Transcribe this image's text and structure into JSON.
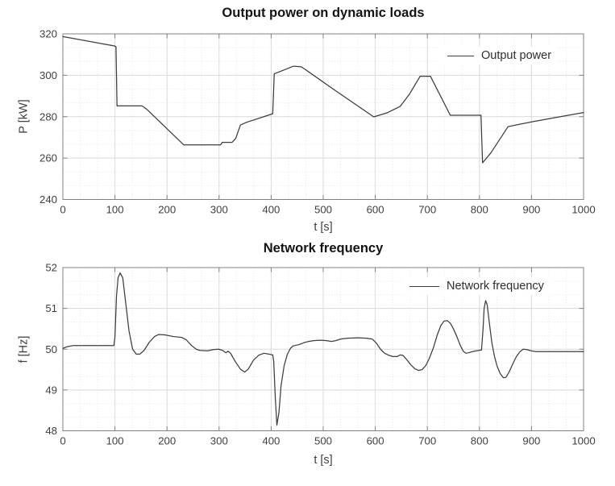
{
  "figure": {
    "background": "#ffffff",
    "axis_color": "#808080",
    "grid_major_color": "#d9d9d9",
    "grid_minor_color": "#e6e6e6",
    "line_color": "#3d3d3d",
    "text_color": "#3f3f3f",
    "title_color": "#141414"
  },
  "chart_data": [
    {
      "type": "line",
      "title": "Output power on dynamic loads",
      "xlabel": "t [s]",
      "ylabel": "P [kW]",
      "xlim": [
        0,
        1000
      ],
      "ylim": [
        240,
        320
      ],
      "xticks": [
        0,
        100,
        200,
        300,
        400,
        500,
        600,
        700,
        800,
        900,
        1000
      ],
      "yticks": [
        240,
        260,
        280,
        300,
        320
      ],
      "minor_divisions_per_major": 3,
      "grid": "major-solid, minor-dotted",
      "legend": {
        "label": "Output power",
        "position": "top-right"
      },
      "series": [
        {
          "name": "Output power",
          "points": [
            [
              0,
              318.7
            ],
            [
              100,
              314.1
            ],
            [
              102,
              313.8
            ],
            [
              104,
              285.2
            ],
            [
              152,
              285.2
            ],
            [
              162,
              283.4
            ],
            [
              232,
              266.4
            ],
            [
              303,
              266.4
            ],
            [
              306,
              267.6
            ],
            [
              325,
              267.6
            ],
            [
              332,
              269.5
            ],
            [
              341,
              276.0
            ],
            [
              352,
              277.2
            ],
            [
              403,
              281.4
            ],
            [
              406,
              300.7
            ],
            [
              428,
              302.9
            ],
            [
              443,
              304.4
            ],
            [
              458,
              304.1
            ],
            [
              520,
              293.2
            ],
            [
              597,
              279.9
            ],
            [
              622,
              281.8
            ],
            [
              648,
              285.0
            ],
            [
              666,
              291.0
            ],
            [
              686,
              299.5
            ],
            [
              706,
              299.5
            ],
            [
              744,
              280.7
            ],
            [
              803,
              280.7
            ],
            [
              806,
              257.7
            ],
            [
              822,
              262.5
            ],
            [
              855,
              275.2
            ],
            [
              905,
              277.7
            ],
            [
              1000,
              282.0
            ]
          ]
        }
      ]
    },
    {
      "type": "line",
      "title": "Network frequency",
      "xlabel": "t [s]",
      "ylabel": "f [Hz]",
      "xlim": [
        0,
        1000
      ],
      "ylim": [
        48,
        52
      ],
      "xticks": [
        0,
        100,
        200,
        300,
        400,
        500,
        600,
        700,
        800,
        900,
        1000
      ],
      "yticks": [
        48,
        49,
        50,
        51,
        52
      ],
      "minor_divisions_per_major": 3,
      "grid": "major-solid, minor-dotted",
      "legend": {
        "label": "Network frequency",
        "position": "top-right"
      },
      "series": [
        {
          "name": "Network frequency",
          "points": [
            [
              0,
              50.02
            ],
            [
              8,
              50.06
            ],
            [
              20,
              50.09
            ],
            [
              95,
              50.09
            ],
            [
              98,
              50.09
            ],
            [
              100,
              50.3
            ],
            [
              103,
              51.3
            ],
            [
              106,
              51.75
            ],
            [
              110,
              51.87
            ],
            [
              115,
              51.75
            ],
            [
              121,
              51.1
            ],
            [
              127,
              50.45
            ],
            [
              134,
              50.0
            ],
            [
              141,
              49.88
            ],
            [
              148,
              49.88
            ],
            [
              156,
              49.97
            ],
            [
              166,
              50.17
            ],
            [
              176,
              50.31
            ],
            [
              184,
              50.36
            ],
            [
              196,
              50.35
            ],
            [
              212,
              50.31
            ],
            [
              228,
              50.29
            ],
            [
              237,
              50.23
            ],
            [
              247,
              50.09
            ],
            [
              256,
              50.0
            ],
            [
              263,
              49.97
            ],
            [
              278,
              49.96
            ],
            [
              289,
              49.99
            ],
            [
              299,
              50.0
            ],
            [
              307,
              49.97
            ],
            [
              313,
              49.91
            ],
            [
              317,
              49.95
            ],
            [
              322,
              49.9
            ],
            [
              331,
              49.7
            ],
            [
              341,
              49.51
            ],
            [
              349,
              49.44
            ],
            [
              356,
              49.51
            ],
            [
              366,
              49.73
            ],
            [
              376,
              49.85
            ],
            [
              386,
              49.9
            ],
            [
              396,
              49.88
            ],
            [
              403,
              49.86
            ],
            [
              405,
              49.7
            ],
            [
              408,
              48.8
            ],
            [
              411,
              48.14
            ],
            [
              415,
              48.45
            ],
            [
              419,
              49.1
            ],
            [
              425,
              49.6
            ],
            [
              431,
              49.87
            ],
            [
              437,
              50.02
            ],
            [
              442,
              50.08
            ],
            [
              453,
              50.11
            ],
            [
              463,
              50.16
            ],
            [
              472,
              50.19
            ],
            [
              482,
              50.21
            ],
            [
              495,
              50.22
            ],
            [
              506,
              50.21
            ],
            [
              516,
              50.19
            ],
            [
              524,
              50.21
            ],
            [
              534,
              50.25
            ],
            [
              547,
              50.27
            ],
            [
              566,
              50.28
            ],
            [
              582,
              50.27
            ],
            [
              594,
              50.25
            ],
            [
              602,
              50.15
            ],
            [
              610,
              50.0
            ],
            [
              618,
              49.9
            ],
            [
              626,
              49.85
            ],
            [
              634,
              49.82
            ],
            [
              642,
              49.82
            ],
            [
              648,
              49.86
            ],
            [
              653,
              49.85
            ],
            [
              660,
              49.75
            ],
            [
              668,
              49.62
            ],
            [
              676,
              49.52
            ],
            [
              683,
              49.48
            ],
            [
              690,
              49.5
            ],
            [
              697,
              49.6
            ],
            [
              704,
              49.78
            ],
            [
              712,
              50.05
            ],
            [
              719,
              50.35
            ],
            [
              726,
              50.58
            ],
            [
              732,
              50.69
            ],
            [
              738,
              50.7
            ],
            [
              744,
              50.64
            ],
            [
              750,
              50.5
            ],
            [
              757,
              50.3
            ],
            [
              763,
              50.1
            ],
            [
              769,
              49.95
            ],
            [
              774,
              49.9
            ],
            [
              781,
              49.92
            ],
            [
              790,
              49.95
            ],
            [
              799,
              49.97
            ],
            [
              804,
              49.98
            ],
            [
              807,
              50.5
            ],
            [
              809,
              51.0
            ],
            [
              812,
              51.19
            ],
            [
              815,
              51.08
            ],
            [
              819,
              50.65
            ],
            [
              824,
              50.15
            ],
            [
              829,
              49.82
            ],
            [
              834,
              49.58
            ],
            [
              840,
              49.4
            ],
            [
              846,
              49.3
            ],
            [
              851,
              49.31
            ],
            [
              857,
              49.44
            ],
            [
              864,
              49.64
            ],
            [
              871,
              49.82
            ],
            [
              878,
              49.94
            ],
            [
              884,
              50.0
            ],
            [
              891,
              49.99
            ],
            [
              899,
              49.96
            ],
            [
              908,
              49.94
            ],
            [
              925,
              49.94
            ],
            [
              1000,
              49.94
            ]
          ]
        }
      ]
    }
  ]
}
